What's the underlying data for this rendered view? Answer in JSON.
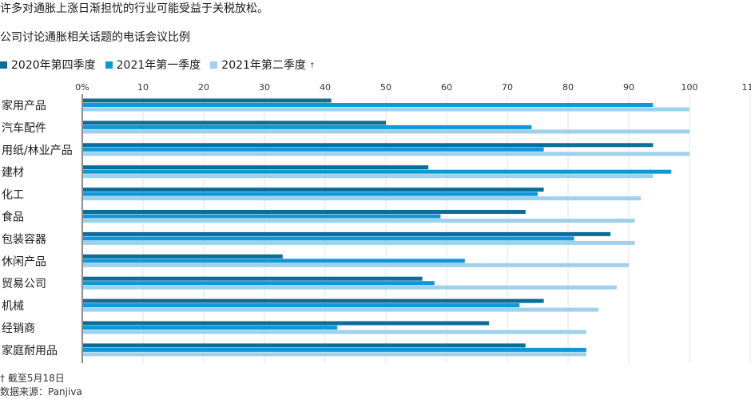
{
  "title": "许多对通胀上涨日渐担忧的行业可能受益于关税放松。",
  "footnote": "† 截至5月18日",
  "source": "数据来源：Panjiva",
  "chart_data": {
    "type": "bar",
    "orientation": "horizontal",
    "subtitle": "公司讨论通胀相关话题的电话会议比例",
    "categories": [
      "家用产品",
      "汽车配件",
      "用纸/林业产品",
      "建材",
      "化工",
      "食品",
      "包装容器",
      "休闲产品",
      "贸易公司",
      "机械",
      "经销商",
      "家庭耐用品"
    ],
    "series": [
      {
        "name": "2020年第四季度",
        "color": "#0b6d99",
        "values": [
          41,
          50,
          94,
          57,
          76,
          73,
          87,
          33,
          56,
          76,
          67,
          73
        ]
      },
      {
        "name": "2021年第一季度",
        "color": "#0f98d8",
        "values": [
          94,
          74,
          76,
          97,
          75,
          59,
          81,
          63,
          58,
          72,
          42,
          83
        ]
      },
      {
        "name": "2021年第二季度",
        "color": "#9fd0ec",
        "legend_superscript": "†",
        "values": [
          100,
          100,
          100,
          94,
          92,
          91,
          91,
          90,
          88,
          85,
          83,
          83
        ]
      }
    ],
    "x_ticks": [
      "0%",
      "10",
      "20",
      "30",
      "40",
      "50",
      "60",
      "70",
      "80",
      "90",
      "100",
      "110"
    ],
    "xlim": [
      0,
      110
    ],
    "grid": true,
    "legend_position": "top-left"
  }
}
